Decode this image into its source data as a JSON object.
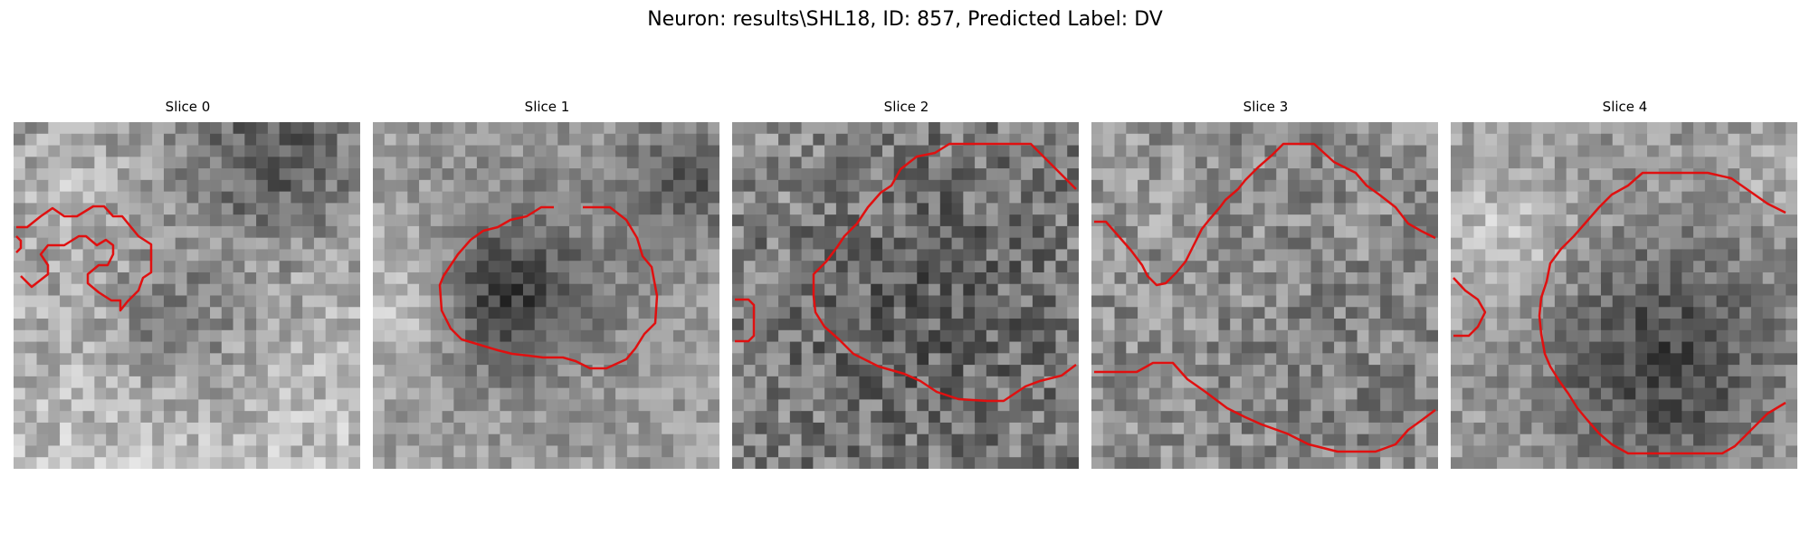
{
  "figure": {
    "title": "Neuron: results\\SHL18, ID: 857, Predicted Label: DV"
  },
  "overlay_color": "#e01010",
  "panels": [
    {
      "label": "Slice 0"
    },
    {
      "label": "Slice 1"
    },
    {
      "label": "Slice 2"
    },
    {
      "label": "Slice 3"
    },
    {
      "label": "Slice 4"
    }
  ]
}
